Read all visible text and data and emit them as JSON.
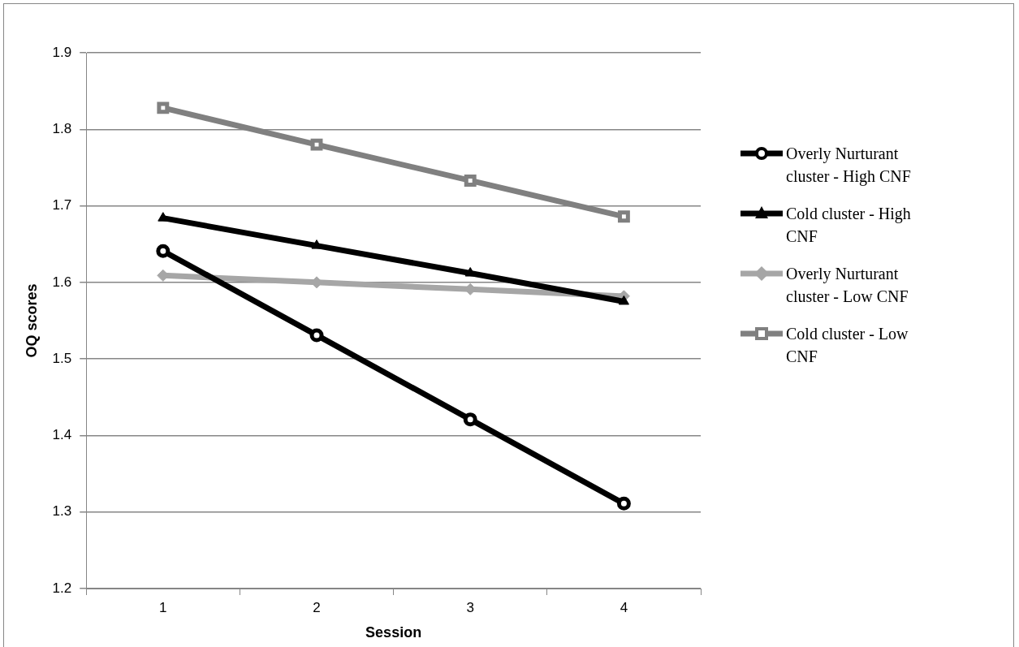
{
  "chart_data": {
    "type": "line",
    "xlabel": "Session",
    "ylabel": "OQ scores",
    "categories": [
      "1",
      "2",
      "3",
      "4"
    ],
    "series": [
      {
        "name": "Overly Nurturant cluster - High CNF",
        "color": "#000000",
        "marker": "circle",
        "values": [
          1.641,
          1.531,
          1.421,
          1.311
        ]
      },
      {
        "name": "Cold cluster - High CNF",
        "color": "#000000",
        "marker": "triangle",
        "values": [
          1.684,
          1.648,
          1.612,
          1.575
        ]
      },
      {
        "name": "Overly Nurturant cluster - Low CNF",
        "color": "#a6a6a6",
        "marker": "diamond",
        "values": [
          1.609,
          1.6,
          1.591,
          1.582
        ]
      },
      {
        "name": "Cold cluster - Low CNF",
        "color": "#808080",
        "marker": "square",
        "values": [
          1.828,
          1.78,
          1.733,
          1.686
        ]
      }
    ],
    "ylim": [
      1.2,
      1.9
    ],
    "yticks": [
      1.2,
      1.3,
      1.4,
      1.5,
      1.6,
      1.7,
      1.8,
      1.9
    ],
    "grid": "y",
    "legend": "right",
    "line_style": "solid"
  }
}
